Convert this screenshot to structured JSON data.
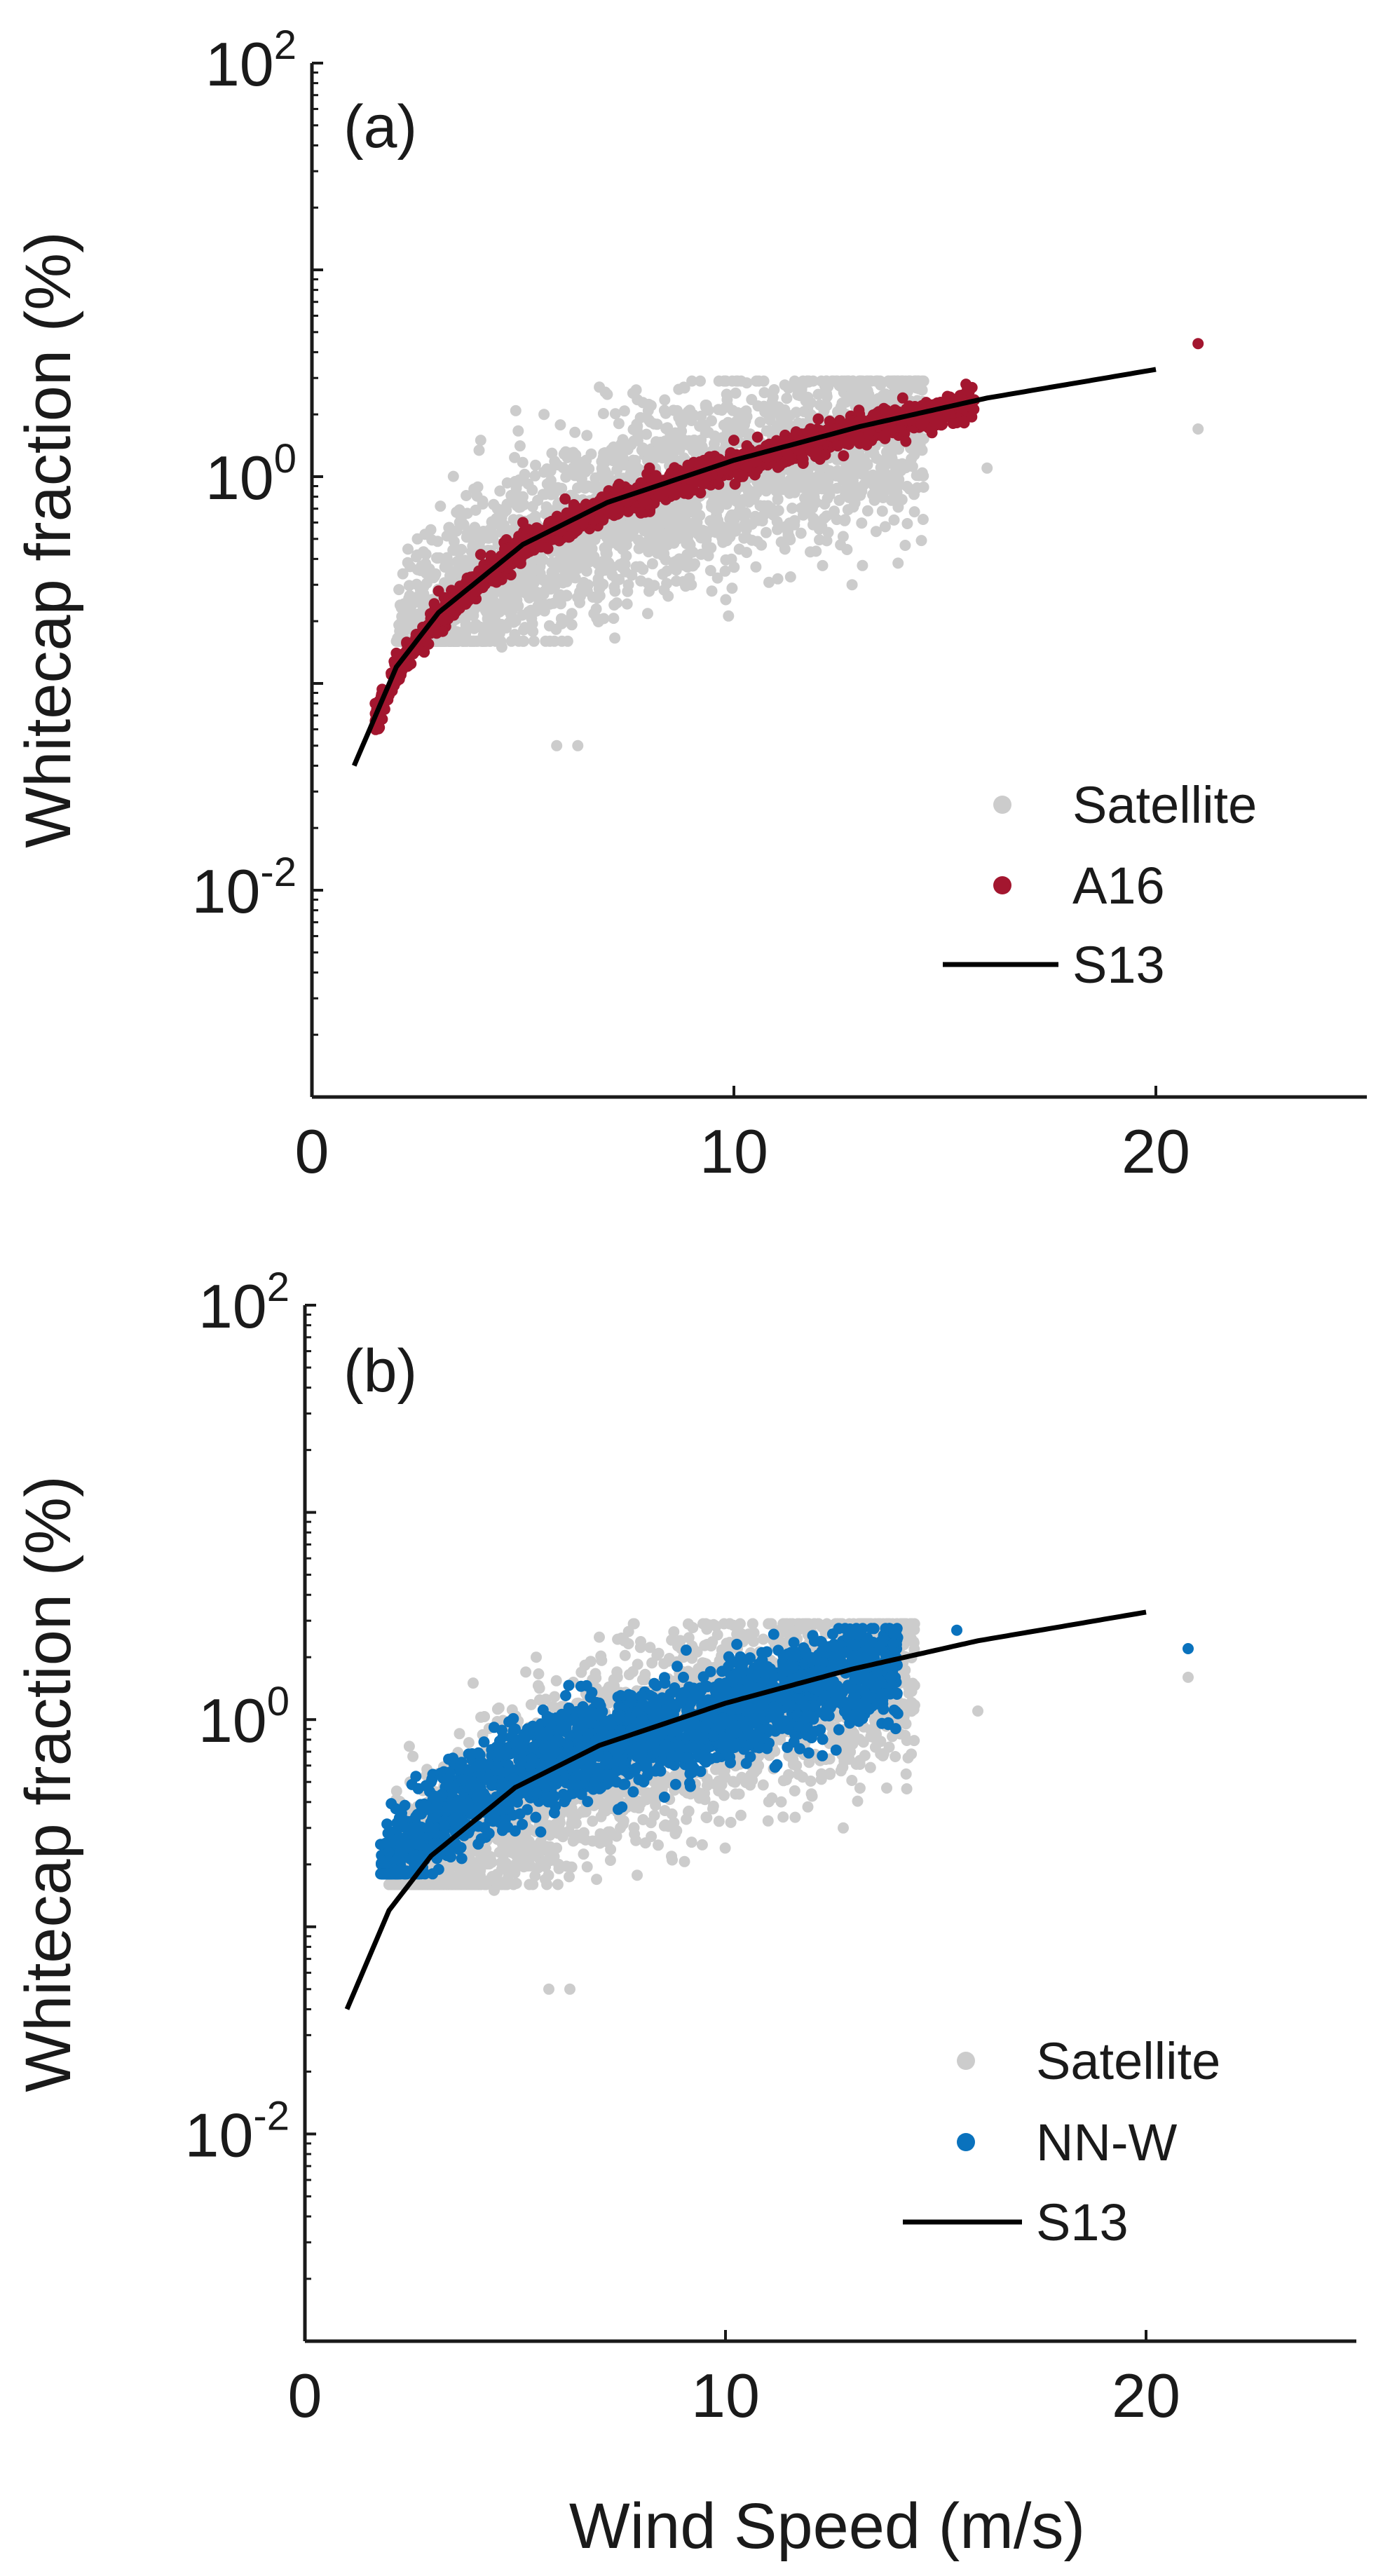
{
  "figure": {
    "x_axis_title": "Wind Speed (m/s)",
    "y_axis_title": "Whitecap fraction (%)"
  },
  "chart_data": [
    {
      "type": "scatter",
      "panel": "(a)",
      "xlabel": "",
      "ylabel": "Whitecap fraction (%)",
      "xlim": [
        0,
        25
      ],
      "ylim": [
        0.001,
        100
      ],
      "yscale": "log",
      "x_ticks": [
        "0",
        "10",
        "20"
      ],
      "y_ticks": [
        {
          "base": "10",
          "exp": "2"
        },
        {
          "base": "10",
          "exp": "0"
        },
        {
          "base": "10",
          "exp": "-2"
        }
      ],
      "legend_position": "bottom-right",
      "series": [
        {
          "name": "Satellite",
          "kind": "cloud",
          "color": "#cccccc",
          "samples": [
            [
              2.5,
              0.5
            ],
            [
              3,
              0.25
            ],
            [
              3.5,
              0.6
            ],
            [
              4,
              1.5
            ],
            [
              4.5,
              0.15
            ],
            [
              5,
              0.8
            ],
            [
              5.5,
              2.0
            ],
            [
              6,
              0.4
            ],
            [
              6.5,
              1.2
            ],
            [
              7,
              2.5
            ],
            [
              7.5,
              0.3
            ],
            [
              8,
              1.0
            ],
            [
              9,
              2.0
            ],
            [
              10,
              0.8
            ],
            [
              11,
              1.5
            ],
            [
              12,
              2.5
            ],
            [
              13,
              1.8
            ],
            [
              5.8,
              0.05
            ],
            [
              6.3,
              0.05
            ],
            [
              16,
              1.1
            ],
            [
              21,
              1.7
            ],
            [
              12.8,
              0.3
            ]
          ]
        },
        {
          "name": "A16",
          "kind": "curve",
          "color": "#a3162f",
          "samples": [
            [
              1.5,
              0.08
            ],
            [
              2,
              0.14
            ],
            [
              3,
              0.28
            ],
            [
              4,
              0.42
            ],
            [
              5,
              0.6
            ],
            [
              6,
              0.78
            ],
            [
              8,
              1.1
            ],
            [
              10,
              1.5
            ],
            [
              12,
              1.9
            ],
            [
              14,
              2.4
            ],
            [
              15.5,
              2.8
            ],
            [
              21,
              4.4
            ]
          ]
        },
        {
          "name": "S13",
          "kind": "line",
          "color": "#000000",
          "samples": [
            [
              1,
              0.04
            ],
            [
              2,
              0.12
            ],
            [
              3,
              0.22
            ],
            [
              5,
              0.47
            ],
            [
              7,
              0.75
            ],
            [
              10,
              1.2
            ],
            [
              13,
              1.75
            ],
            [
              16,
              2.4
            ],
            [
              20,
              3.3
            ]
          ]
        }
      ]
    },
    {
      "type": "scatter",
      "panel": "(b)",
      "xlabel": "Wind Speed (m/s)",
      "ylabel": "Whitecap fraction (%)",
      "xlim": [
        0,
        25
      ],
      "ylim": [
        0.001,
        100
      ],
      "yscale": "log",
      "x_ticks": [
        "0",
        "10",
        "20"
      ],
      "y_ticks": [
        {
          "base": "10",
          "exp": "2"
        },
        {
          "base": "10",
          "exp": "0"
        },
        {
          "base": "10",
          "exp": "-2"
        }
      ],
      "legend_position": "bottom-right",
      "series": [
        {
          "name": "Satellite",
          "kind": "cloud",
          "color": "#cccccc",
          "samples": [
            [
              2.5,
              0.5
            ],
            [
              3,
              0.25
            ],
            [
              3.5,
              0.6
            ],
            [
              4,
              1.5
            ],
            [
              4.5,
              0.15
            ],
            [
              5,
              0.8
            ],
            [
              5.5,
              2.0
            ],
            [
              6,
              0.4
            ],
            [
              6.5,
              1.2
            ],
            [
              7,
              2.5
            ],
            [
              7.5,
              0.3
            ],
            [
              8,
              1.0
            ],
            [
              9,
              2.0
            ],
            [
              10,
              0.8
            ],
            [
              11,
              1.5
            ],
            [
              12,
              2.5
            ],
            [
              13,
              1.8
            ],
            [
              5.8,
              0.05
            ],
            [
              6.3,
              0.05
            ],
            [
              16,
              1.1
            ],
            [
              21,
              1.6
            ],
            [
              12.8,
              0.3
            ]
          ]
        },
        {
          "name": "NN-W",
          "kind": "cloud",
          "color": "#0a72bd",
          "samples": [
            [
              1.8,
              0.25
            ],
            [
              2.5,
              0.3
            ],
            [
              3,
              0.5
            ],
            [
              4,
              0.5
            ],
            [
              5,
              0.9
            ],
            [
              6,
              0.8
            ],
            [
              7,
              1.2
            ],
            [
              8,
              1.3
            ],
            [
              9,
              1.6
            ],
            [
              10,
              1.5
            ],
            [
              11,
              1.8
            ],
            [
              12,
              2.0
            ],
            [
              13,
              2.3
            ],
            [
              14,
              2.6
            ],
            [
              15.5,
              2.7
            ],
            [
              21,
              2.2
            ]
          ]
        },
        {
          "name": "S13",
          "kind": "line",
          "color": "#000000",
          "samples": [
            [
              1,
              0.04
            ],
            [
              2,
              0.12
            ],
            [
              3,
              0.22
            ],
            [
              5,
              0.47
            ],
            [
              7,
              0.75
            ],
            [
              10,
              1.2
            ],
            [
              13,
              1.75
            ],
            [
              16,
              2.4
            ],
            [
              20,
              3.3
            ]
          ]
        }
      ]
    }
  ]
}
